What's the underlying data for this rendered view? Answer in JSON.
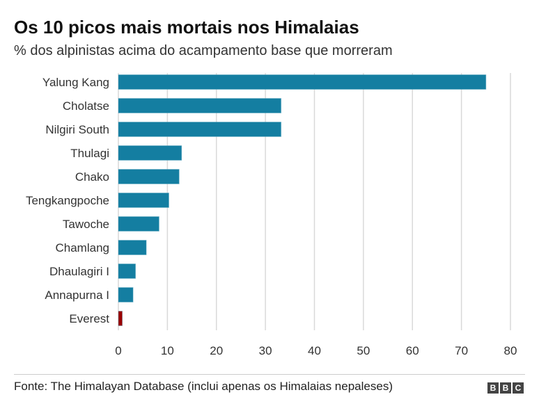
{
  "chart_data": {
    "type": "bar",
    "orientation": "horizontal",
    "title": "Os 10 picos mais mortais nos Himalaias",
    "subtitle": "% dos alpinistas acima do acampamento base que morreram",
    "categories": [
      "Yalung Kang",
      "Cholatse",
      "Nilgiri South",
      "Thulagi",
      "Chako",
      "Tengkangpoche",
      "Tawoche",
      "Chamlang",
      "Dhaulagiri I",
      "Annapurna I",
      "Everest"
    ],
    "values": [
      75,
      33.2,
      33.2,
      12.9,
      12.4,
      10.3,
      8.3,
      5.7,
      3.5,
      3.0,
      0.8
    ],
    "colors": [
      "#147ea1",
      "#147ea1",
      "#147ea1",
      "#147ea1",
      "#147ea1",
      "#147ea1",
      "#147ea1",
      "#147ea1",
      "#147ea1",
      "#147ea1",
      "#990000"
    ],
    "xlim": [
      0,
      80
    ],
    "xticks": [
      0,
      10,
      20,
      30,
      40,
      50,
      60,
      70,
      80
    ],
    "grid": true,
    "xlabel": "",
    "ylabel": ""
  },
  "footer": {
    "source": "Fonte: The Himalayan Database (inclui apenas os Himalaias nepaleses)",
    "logo": [
      "B",
      "B",
      "C"
    ]
  }
}
